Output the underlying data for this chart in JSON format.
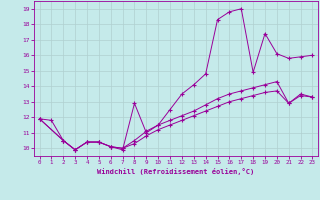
{
  "xlabel": "Windchill (Refroidissement éolien,°C)",
  "xlim": [
    -0.5,
    23.5
  ],
  "ylim": [
    9.5,
    19.5
  ],
  "yticks": [
    10,
    11,
    12,
    13,
    14,
    15,
    16,
    17,
    18,
    19
  ],
  "xticks": [
    0,
    1,
    2,
    3,
    4,
    5,
    6,
    7,
    8,
    9,
    10,
    11,
    12,
    13,
    14,
    15,
    16,
    17,
    18,
    19,
    20,
    21,
    22,
    23
  ],
  "bg_color": "#c5eaea",
  "line_color": "#990099",
  "grid_color": "#b0d0d0",
  "line1_x": [
    0,
    1,
    2,
    3,
    4,
    5,
    6,
    7,
    8,
    9,
    10,
    11,
    12,
    13,
    14,
    15,
    16,
    17,
    18,
    19,
    20,
    21,
    22,
    23
  ],
  "line1_y": [
    11.9,
    11.8,
    10.5,
    9.9,
    10.4,
    10.4,
    10.1,
    9.9,
    12.9,
    11.0,
    11.5,
    12.5,
    13.5,
    14.1,
    14.8,
    18.3,
    18.8,
    19.0,
    14.9,
    17.4,
    16.1,
    15.8,
    15.9,
    16.0
  ],
  "line2_x": [
    0,
    2,
    3,
    4,
    5,
    6,
    7,
    8,
    9,
    10,
    11,
    12,
    13,
    14,
    15,
    16,
    17,
    18,
    19,
    20,
    21,
    22,
    23
  ],
  "line2_y": [
    11.9,
    10.5,
    9.9,
    10.4,
    10.4,
    10.1,
    10.0,
    10.3,
    10.8,
    11.2,
    11.5,
    11.8,
    12.1,
    12.4,
    12.7,
    13.0,
    13.2,
    13.4,
    13.6,
    13.7,
    12.9,
    13.4,
    13.3
  ],
  "line3_x": [
    0,
    2,
    3,
    4,
    5,
    6,
    7,
    8,
    9,
    10,
    11,
    12,
    13,
    14,
    15,
    16,
    17,
    18,
    19,
    20,
    21,
    22,
    23
  ],
  "line3_y": [
    11.9,
    10.5,
    9.9,
    10.4,
    10.4,
    10.1,
    10.0,
    10.5,
    11.1,
    11.5,
    11.8,
    12.1,
    12.4,
    12.8,
    13.2,
    13.5,
    13.7,
    13.9,
    14.1,
    14.3,
    12.9,
    13.5,
    13.3
  ]
}
